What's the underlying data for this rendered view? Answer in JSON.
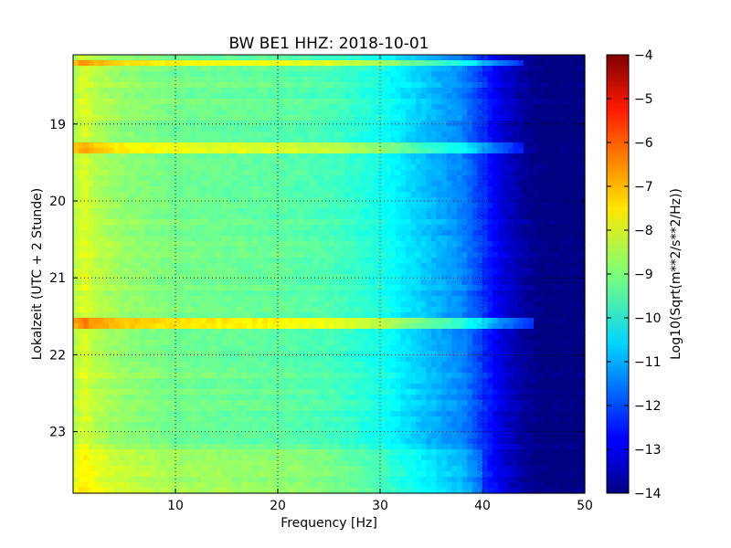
{
  "chart_data": {
    "type": "heatmap",
    "title": "BW BE1 HHZ: 2018-10-01",
    "xlabel": "Frequency [Hz]",
    "ylabel": "Lokalzeit (UTC + 2 Stunde)",
    "xlim": [
      0,
      50
    ],
    "ylim": [
      18.1,
      23.8
    ],
    "x_ticks": [
      10,
      20,
      30,
      40,
      50
    ],
    "y_ticks": [
      19,
      20,
      21,
      22,
      23
    ],
    "y_inverted": true,
    "grid": true,
    "colormap": "jet",
    "colorbar": {
      "label": "Log10(Sqrt(m**2/s**2/Hz))",
      "range": [
        -14,
        -4
      ],
      "ticks": [
        -4,
        -5,
        -6,
        -7,
        -8,
        -9,
        -10,
        -11,
        -12,
        -13,
        -14
      ]
    },
    "base_profile": {
      "frequency_hz": [
        0,
        1,
        2,
        5,
        10,
        15,
        20,
        25,
        30,
        32,
        35,
        38,
        40,
        42,
        44,
        46,
        50
      ],
      "log10_amplitude": [
        -8.6,
        -8.0,
        -8.4,
        -8.8,
        -9.1,
        -9.2,
        -9.3,
        -9.5,
        -10.0,
        -10.4,
        -10.9,
        -11.4,
        -12.2,
        -13.1,
        -13.7,
        -14.0,
        -14.0
      ]
    },
    "features": [
      {
        "time": 18.2,
        "width_h": 0.05,
        "f_max_hz": 44,
        "delta": 1.4
      },
      {
        "time": 19.3,
        "width_h": 0.05,
        "f_max_hz": 44,
        "delta": 1.1
      },
      {
        "time": 21.6,
        "width_h": 0.05,
        "f_max_hz": 45,
        "delta": 1.6
      },
      {
        "time": 23.55,
        "width_h": 0.35,
        "f_max_hz": 40,
        "delta": 0.5
      }
    ]
  }
}
